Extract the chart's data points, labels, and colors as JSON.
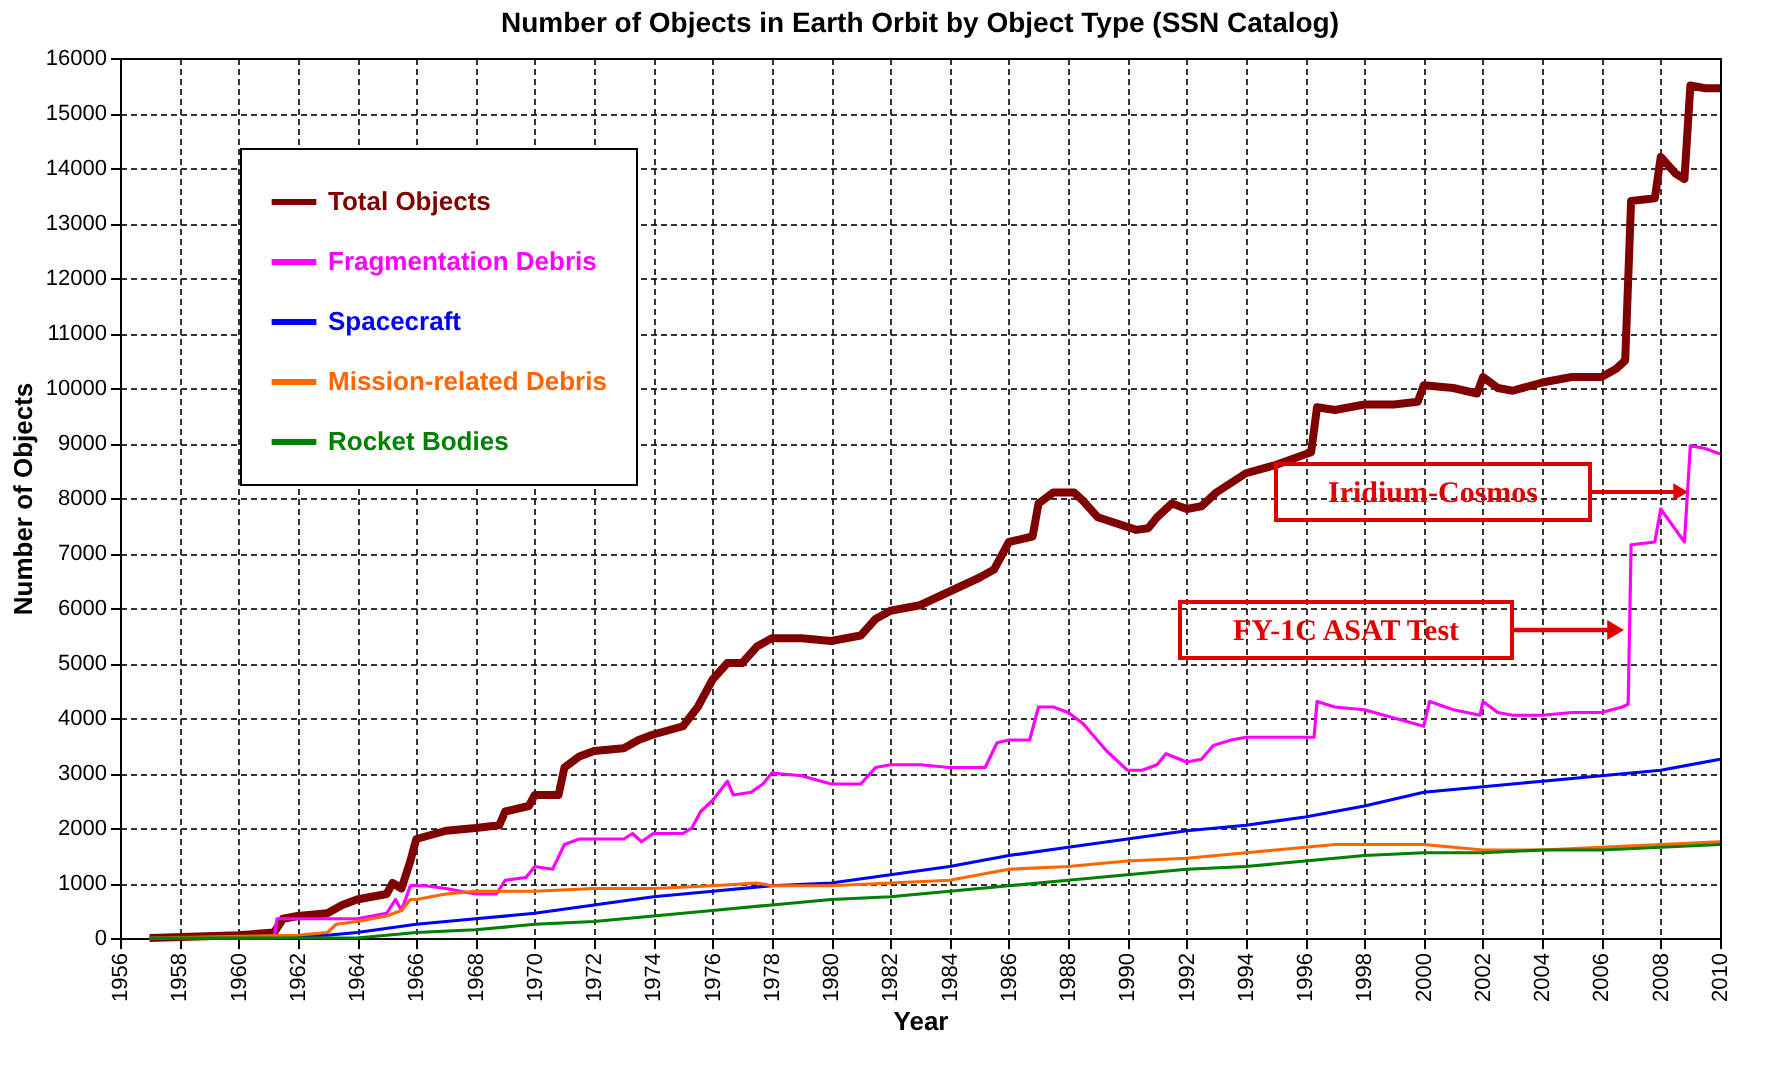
{
  "chart_data": {
    "type": "line",
    "title": "Number of Objects in Earth Orbit by Object Type (SSN Catalog)",
    "xlabel": "Year",
    "ylabel": "Number of Objects",
    "xlim": [
      1956,
      2010
    ],
    "xticks": [
      1956,
      1958,
      1960,
      1962,
      1964,
      1966,
      1968,
      1970,
      1972,
      1974,
      1976,
      1978,
      1980,
      1982,
      1984,
      1986,
      1988,
      1990,
      1992,
      1994,
      1996,
      1998,
      2000,
      2002,
      2004,
      2006,
      2008,
      2010
    ],
    "ylim": [
      0,
      16000
    ],
    "yticks": [
      0,
      1000,
      2000,
      3000,
      4000,
      5000,
      6000,
      7000,
      8000,
      9000,
      10000,
      11000,
      12000,
      13000,
      14000,
      15000,
      16000
    ],
    "grid": true,
    "legend": "top left",
    "line_style": "solid",
    "series": [
      {
        "name": "Total Objects",
        "color": "#800000",
        "x": [
          1957,
          1960,
          1961.2,
          1961.5,
          1962,
          1963,
          1963.5,
          1964,
          1965,
          1965.2,
          1965.5,
          1965.8,
          1966,
          1967,
          1968,
          1968.8,
          1969,
          1969.8,
          1970,
          1970.8,
          1971,
          1971.5,
          1972,
          1973,
          1973.5,
          1974,
          1975,
          1975.5,
          1976,
          1976.5,
          1977,
          1977.5,
          1978,
          1979,
          1980,
          1981,
          1981.5,
          1982,
          1983,
          1984,
          1985,
          1985.5,
          1986,
          1986.8,
          1987,
          1987.5,
          1988.2,
          1988.5,
          1989,
          1990.3,
          1990.7,
          1991,
          1991.5,
          1992,
          1992.5,
          1993,
          1994,
          1995,
          1996.2,
          1996.4,
          1997,
          1998,
          1999,
          1999.8,
          2000,
          2001,
          2001.8,
          2002,
          2002.5,
          2003,
          2004,
          2005,
          2006,
          2006.5,
          2006.8,
          2007,
          2007.8,
          2008,
          2008.5,
          2008.8,
          2009,
          2009.5,
          2010
        ],
        "values": [
          0,
          50,
          100,
          350,
          400,
          450,
          600,
          700,
          800,
          1000,
          900,
          1400,
          1800,
          1950,
          2000,
          2050,
          2300,
          2400,
          2600,
          2600,
          3100,
          3300,
          3400,
          3450,
          3600,
          3700,
          3850,
          4200,
          4700,
          5000,
          5000,
          5300,
          5450,
          5450,
          5400,
          5500,
          5800,
          5950,
          6050,
          6300,
          6550,
          6700,
          7200,
          7300,
          7900,
          8100,
          8100,
          7950,
          7650,
          7420,
          7450,
          7650,
          7900,
          7800,
          7850,
          8100,
          8450,
          8600,
          8830,
          9650,
          9600,
          9700,
          9700,
          9750,
          10050,
          10000,
          9900,
          10200,
          10000,
          9950,
          10100,
          10200,
          10200,
          10350,
          10500,
          13400,
          13450,
          14200,
          13900,
          13800,
          15500,
          15450,
          15450
        ]
      },
      {
        "name": "Fragmentation Debris",
        "color": "#ff00ff",
        "x": [
          1957,
          1961.2,
          1961.3,
          1964,
          1964.5,
          1965,
          1965.3,
          1965.5,
          1965.8,
          1966.3,
          1967,
          1968,
          1968.7,
          1969,
          1969.7,
          1970,
          1970.6,
          1971,
          1971.5,
          1972,
          1973,
          1973.3,
          1973.6,
          1974,
          1975,
          1975.3,
          1975.6,
          1976,
          1976.5,
          1976.7,
          1977.3,
          1977.7,
          1978,
          1979,
          1980,
          1981,
          1981.5,
          1982,
          1983,
          1984,
          1985.2,
          1985.6,
          1986,
          1986.7,
          1987,
          1987.5,
          1988,
          1988.5,
          1989.3,
          1990,
          1990.5,
          1991,
          1991.3,
          1992,
          1992.5,
          1992.9,
          1993.5,
          1994,
          1995,
          1996.3,
          1996.4,
          1997,
          1998,
          1999,
          2000,
          2000.2,
          2001,
          2001.9,
          2002,
          2002.5,
          2003,
          2004,
          2005,
          2006,
          2006.7,
          2006.9,
          2007,
          2007.8,
          2008,
          2008.8,
          2009,
          2009.5,
          2010
        ],
        "values": [
          0,
          0,
          350,
          350,
          400,
          450,
          700,
          500,
          950,
          950,
          900,
          800,
          800,
          1050,
          1100,
          1300,
          1250,
          1700,
          1800,
          1800,
          1800,
          1900,
          1750,
          1900,
          1900,
          2000,
          2300,
          2500,
          2850,
          2600,
          2650,
          2800,
          3000,
          2950,
          2800,
          2800,
          3100,
          3150,
          3150,
          3100,
          3100,
          3550,
          3600,
          3600,
          4200,
          4200,
          4100,
          3900,
          3400,
          3050,
          3050,
          3150,
          3350,
          3200,
          3250,
          3500,
          3600,
          3650,
          3650,
          3650,
          4300,
          4200,
          4150,
          4000,
          3850,
          4300,
          4150,
          4050,
          4300,
          4100,
          4050,
          4050,
          4100,
          4100,
          4200,
          4250,
          7150,
          7200,
          7800,
          7200,
          8950,
          8900,
          8800
        ]
      },
      {
        "name": "Spacecraft",
        "color": "#0000ff",
        "x": [
          1957,
          1963,
          1964,
          1966,
          1968,
          1970,
          1972,
          1974,
          1976,
          1978,
          1980,
          1982,
          1984,
          1986,
          1988,
          1990,
          1992,
          1994,
          1996,
          1998,
          2000,
          2002,
          2004,
          2006,
          2008,
          2010
        ],
        "values": [
          0,
          50,
          100,
          250,
          350,
          450,
          600,
          750,
          850,
          950,
          1000,
          1150,
          1300,
          1500,
          1650,
          1800,
          1950,
          2050,
          2200,
          2400,
          2650,
          2750,
          2850,
          2950,
          3050,
          3250
        ]
      },
      {
        "name": "Mission-related Debris",
        "color": "#ff6600",
        "x": [
          1957,
          1962,
          1963,
          1963.3,
          1964,
          1965,
          1965.5,
          1965.8,
          1966,
          1967,
          1968,
          1970,
          1972,
          1974,
          1976,
          1977.5,
          1978,
          1980,
          1982,
          1984,
          1986,
          1988,
          1990,
          1992,
          1994,
          1996,
          1997,
          1998,
          2000,
          2002,
          2004,
          2006,
          2008,
          2010
        ],
        "values": [
          0,
          50,
          100,
          250,
          300,
          400,
          500,
          700,
          700,
          800,
          850,
          850,
          900,
          900,
          950,
          1000,
          950,
          950,
          1000,
          1050,
          1250,
          1300,
          1400,
          1450,
          1550,
          1650,
          1700,
          1700,
          1700,
          1600,
          1600,
          1650,
          1700,
          1750
        ]
      },
      {
        "name": "Rocket Bodies",
        "color": "#008000",
        "x": [
          1957,
          1964,
          1965,
          1966,
          1968,
          1970,
          1972,
          1974,
          1976,
          1978,
          1980,
          1982,
          1984,
          1986,
          1988,
          1990,
          1992,
          1994,
          1996,
          1998,
          2000,
          2002,
          2004,
          2006,
          2008,
          2010
        ],
        "values": [
          0,
          0,
          50,
          100,
          150,
          250,
          300,
          400,
          500,
          600,
          700,
          750,
          850,
          950,
          1050,
          1150,
          1250,
          1300,
          1400,
          1500,
          1550,
          1550,
          1600,
          1600,
          1650,
          1700
        ]
      }
    ],
    "annotations": [
      "Iridium-Cosmos",
      "FY-1C ASAT Test"
    ]
  }
}
